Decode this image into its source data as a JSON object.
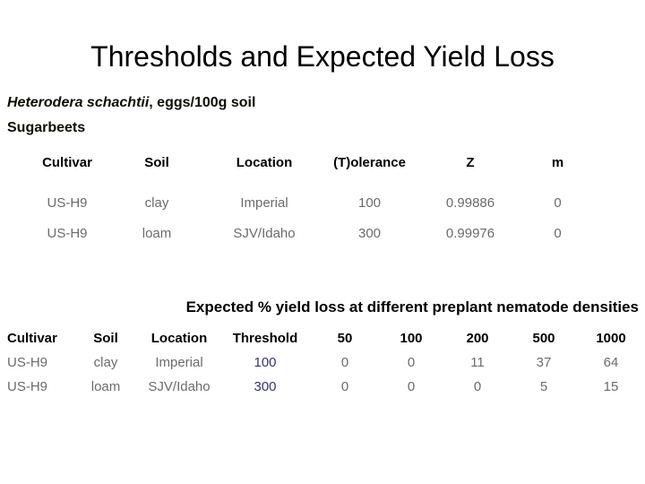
{
  "slide": {
    "title": "Thresholds and Expected Yield Loss",
    "subtitle": {
      "species": "Heterodera schachtii",
      "rest": ", eggs/100g soil",
      "line2": "Sugarbeets"
    },
    "section2_heading": "Expected % yield loss at different preplant nematode densities"
  },
  "table1": {
    "headers": [
      "Cultivar",
      "Soil",
      "Location",
      "(T)olerance",
      "Z",
      "m"
    ],
    "rows": [
      [
        "US-H9",
        "clay",
        "Imperial",
        "100",
        "0.99886",
        "0"
      ],
      [
        "US-H9",
        "loam",
        "SJV/Idaho",
        "300",
        "0.99976",
        "0"
      ]
    ]
  },
  "table2": {
    "headers": [
      "Cultivar",
      "Soil",
      "Location",
      "Threshold",
      "50",
      "100",
      "200",
      "500",
      "1000"
    ],
    "rows": [
      [
        "US-H9",
        "clay",
        "Imperial",
        "100",
        "0",
        "0",
        "11",
        "37",
        "64"
      ],
      [
        "US-H9",
        "loam",
        "SJV/Idaho",
        "300",
        "0",
        "0",
        "0",
        "5",
        "15"
      ]
    ]
  },
  "colors": {
    "background": "#ffffff",
    "heading_text": "#000000",
    "data_text": "#6b6b6b",
    "threshold_value": "#333377"
  }
}
